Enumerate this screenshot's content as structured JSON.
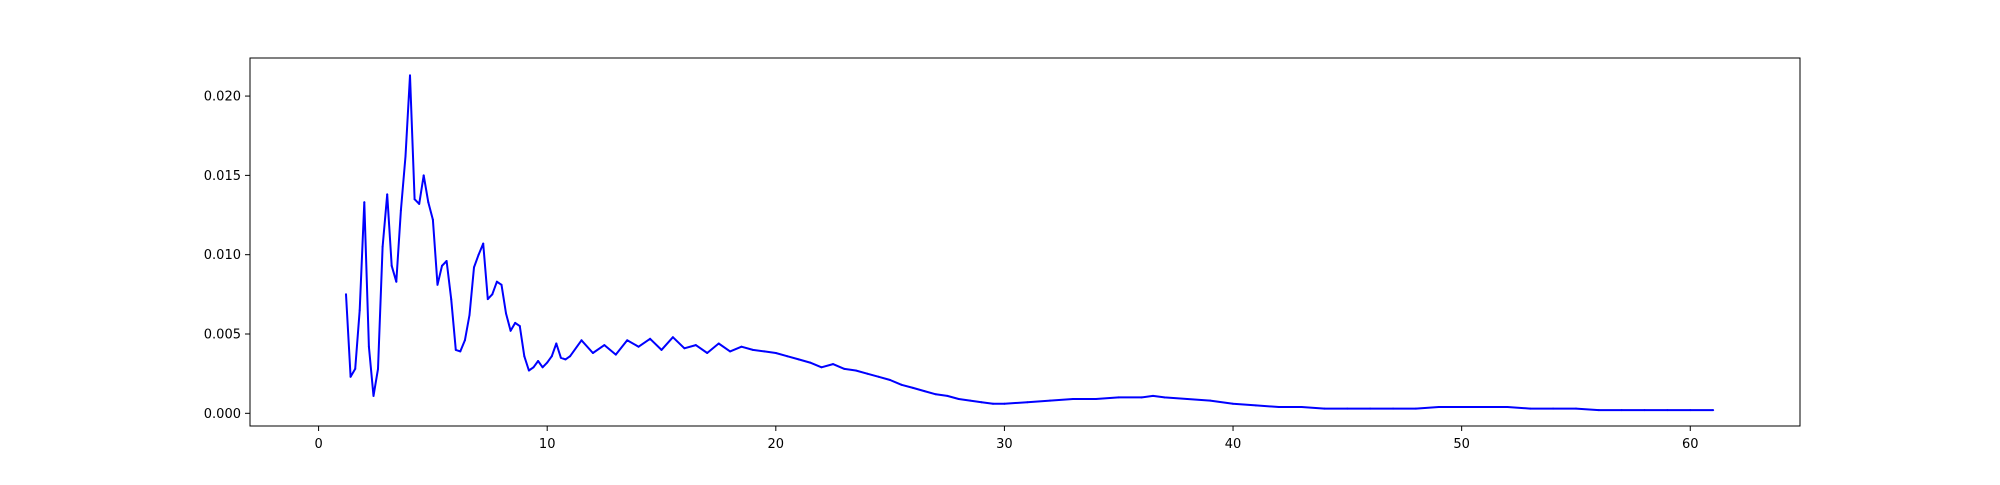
{
  "chart_data": {
    "type": "line",
    "title": "",
    "xlabel": "",
    "ylabel": "",
    "xlim": [
      -3.0,
      64.8
    ],
    "ylim": [
      -0.0008,
      0.0224
    ],
    "xticks": [
      0,
      10,
      20,
      30,
      40,
      50,
      60
    ],
    "xtick_labels": [
      "0",
      "10",
      "20",
      "30",
      "40",
      "50",
      "60"
    ],
    "yticks": [
      0.0,
      0.005,
      0.01,
      0.015,
      0.02
    ],
    "ytick_labels": [
      "0.000",
      "0.005",
      "0.010",
      "0.015",
      "0.020"
    ],
    "grid": false,
    "legend": "none",
    "series": [
      {
        "color": "#0000ff",
        "x": [
          1.2,
          1.4,
          1.6,
          1.8,
          2.0,
          2.2,
          2.4,
          2.6,
          2.8,
          3.0,
          3.2,
          3.4,
          3.6,
          3.8,
          4.0,
          4.2,
          4.4,
          4.6,
          4.8,
          5.0,
          5.2,
          5.4,
          5.6,
          5.8,
          6.0,
          6.2,
          6.4,
          6.6,
          6.8,
          7.0,
          7.2,
          7.4,
          7.6,
          7.8,
          8.0,
          8.2,
          8.4,
          8.6,
          8.8,
          9.0,
          9.2,
          9.4,
          9.6,
          9.8,
          10.0,
          10.2,
          10.4,
          10.6,
          10.8,
          11.0,
          11.5,
          12.0,
          12.5,
          13.0,
          13.5,
          14.0,
          14.5,
          15.0,
          15.5,
          16.0,
          16.5,
          17.0,
          17.5,
          18.0,
          18.5,
          19.0,
          19.5,
          20.0,
          20.5,
          21.0,
          21.5,
          22.0,
          22.5,
          23.0,
          23.5,
          24.0,
          24.5,
          25.0,
          25.5,
          26.0,
          26.5,
          27.0,
          27.5,
          28.0,
          28.5,
          29.0,
          29.5,
          30.0,
          31.0,
          32.0,
          33.0,
          34.0,
          35.0,
          36.0,
          36.5,
          37.0,
          38.0,
          39.0,
          40.0,
          41.0,
          42.0,
          43.0,
          44.0,
          45.0,
          46.0,
          47.0,
          48.0,
          49.0,
          50.0,
          51.0,
          52.0,
          53.0,
          54.0,
          55.0,
          56.0,
          57.0,
          58.0,
          59.0,
          60.0,
          61.0
        ],
        "y": [
          0.0075,
          0.0023,
          0.0028,
          0.0065,
          0.0133,
          0.0042,
          0.0011,
          0.0028,
          0.0105,
          0.0138,
          0.0093,
          0.0083,
          0.0128,
          0.0162,
          0.0213,
          0.0135,
          0.0132,
          0.015,
          0.0133,
          0.0122,
          0.0081,
          0.0093,
          0.0096,
          0.0072,
          0.004,
          0.0039,
          0.0046,
          0.0062,
          0.0092,
          0.01,
          0.0107,
          0.0072,
          0.0075,
          0.0083,
          0.0081,
          0.0063,
          0.0052,
          0.0057,
          0.0055,
          0.0036,
          0.0027,
          0.0029,
          0.0033,
          0.0029,
          0.0032,
          0.0036,
          0.0044,
          0.0035,
          0.0034,
          0.0036,
          0.0046,
          0.0038,
          0.0043,
          0.0037,
          0.0046,
          0.0042,
          0.0047,
          0.004,
          0.0048,
          0.0041,
          0.0043,
          0.0038,
          0.0044,
          0.0039,
          0.0042,
          0.004,
          0.0039,
          0.0038,
          0.0036,
          0.0034,
          0.0032,
          0.0029,
          0.0031,
          0.0028,
          0.0027,
          0.0025,
          0.0023,
          0.0021,
          0.0018,
          0.0016,
          0.0014,
          0.0012,
          0.0011,
          0.0009,
          0.0008,
          0.0007,
          0.0006,
          0.0006,
          0.0007,
          0.0008,
          0.0009,
          0.0009,
          0.001,
          0.001,
          0.0011,
          0.001,
          0.0009,
          0.0008,
          0.0006,
          0.0005,
          0.0004,
          0.0004,
          0.0003,
          0.0003,
          0.0003,
          0.0003,
          0.0003,
          0.0004,
          0.0004,
          0.0004,
          0.0004,
          0.0003,
          0.0003,
          0.0003,
          0.0002,
          0.0002,
          0.0002,
          0.0002,
          0.0002,
          0.0002
        ]
      }
    ]
  }
}
